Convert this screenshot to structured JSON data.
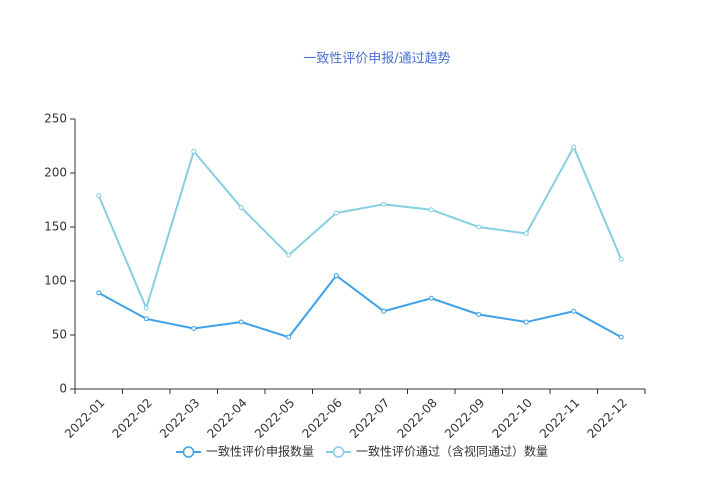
{
  "chart_data": {
    "type": "line",
    "title": "一致性评价申报/通过趋势",
    "categories": [
      "2022-01",
      "2022-02",
      "2022-03",
      "2022-04",
      "2022-05",
      "2022-06",
      "2022-07",
      "2022-08",
      "2022-09",
      "2022-10",
      "2022-11",
      "2022-12"
    ],
    "series": [
      {
        "name": "一致性评价申报数量",
        "color": "#3fa1e8",
        "values": [
          89,
          65,
          56,
          62,
          48,
          105,
          72,
          84,
          69,
          62,
          72,
          48
        ]
      },
      {
        "name": "一致性评价通过（含视同通过）数量",
        "color": "#86cfe3",
        "values": [
          179,
          75,
          220,
          168,
          124,
          163,
          171,
          166,
          150,
          144,
          224,
          120
        ]
      }
    ],
    "ylim": [
      0,
      250
    ],
    "yticks": [
      0,
      50,
      100,
      150,
      200,
      250
    ],
    "grid": false
  }
}
